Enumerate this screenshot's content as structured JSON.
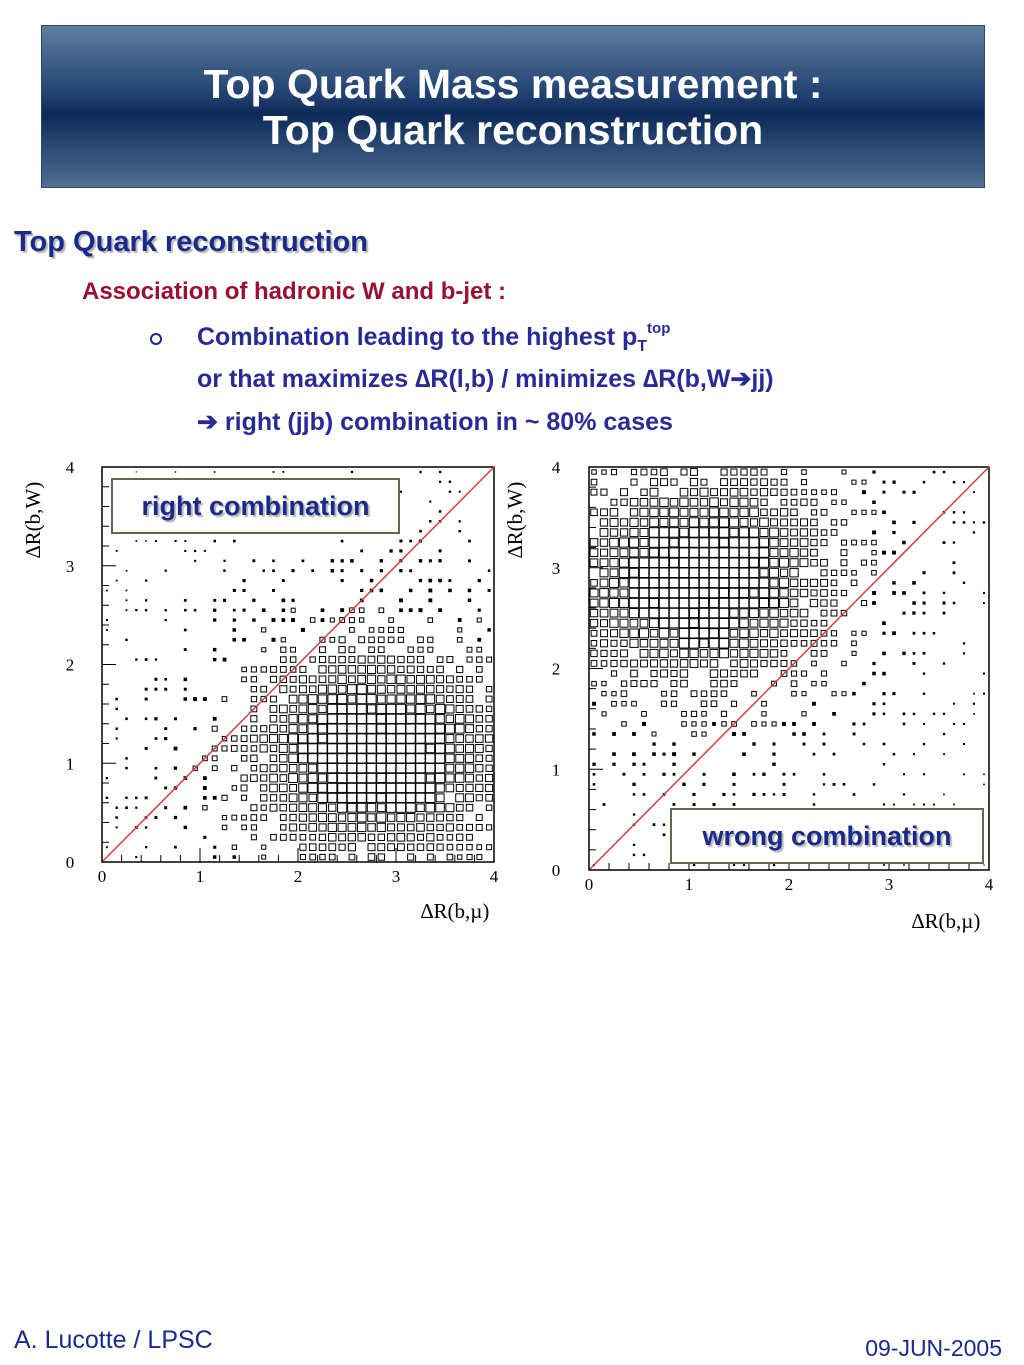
{
  "slide": {
    "title_line1": "Top Quark Mass measurement :",
    "title_line2": "Top Quark reconstruction",
    "heading": "Top Quark reconstruction",
    "subheading": "Association of hadronic W and b-jet :",
    "bullet_line1": "Combination leading to the highest p",
    "bullet_line1_sub": "T",
    "bullet_line1_sup": "top",
    "bullet_line2": "or that maximizes ∆R(l,b) / minimizes ∆R(b,W➔jj)",
    "bullet_line3": "➔ right (jjb) combination in ~ 80% cases",
    "footer_author": "A. Lucotte / LPSC",
    "footer_date": "09-JUN-2005"
  },
  "colors": {
    "title_text": "#ffffff",
    "heading": "#1a2a8a",
    "subheading": "#9a1030",
    "bullet_text": "#2a2a96",
    "diagonal_line": "#d04040"
  },
  "chart_data": [
    {
      "type": "heatmap",
      "label": "right combination",
      "xlabel": "∆R(b,µ)",
      "ylabel": "∆R(b,W)",
      "xlim": [
        0,
        4
      ],
      "ylim": [
        0,
        4
      ],
      "xticks": [
        "0",
        "1",
        "2",
        "3",
        "4"
      ],
      "yticks": [
        "0",
        "1",
        "2",
        "3",
        "4"
      ],
      "diagonal": true,
      "peak": [
        2.8,
        1.1
      ]
    },
    {
      "type": "heatmap",
      "label": "wrong combination",
      "xlabel": "∆R(b,µ)",
      "ylabel": "∆R(b,W)",
      "xlim": [
        0,
        4
      ],
      "ylim": [
        0,
        4
      ],
      "xticks": [
        "0",
        "1",
        "2",
        "3",
        "4"
      ],
      "yticks": [
        "0",
        "1",
        "2",
        "3",
        "4"
      ],
      "diagonal": true,
      "peak": [
        1.1,
        2.9
      ]
    }
  ]
}
